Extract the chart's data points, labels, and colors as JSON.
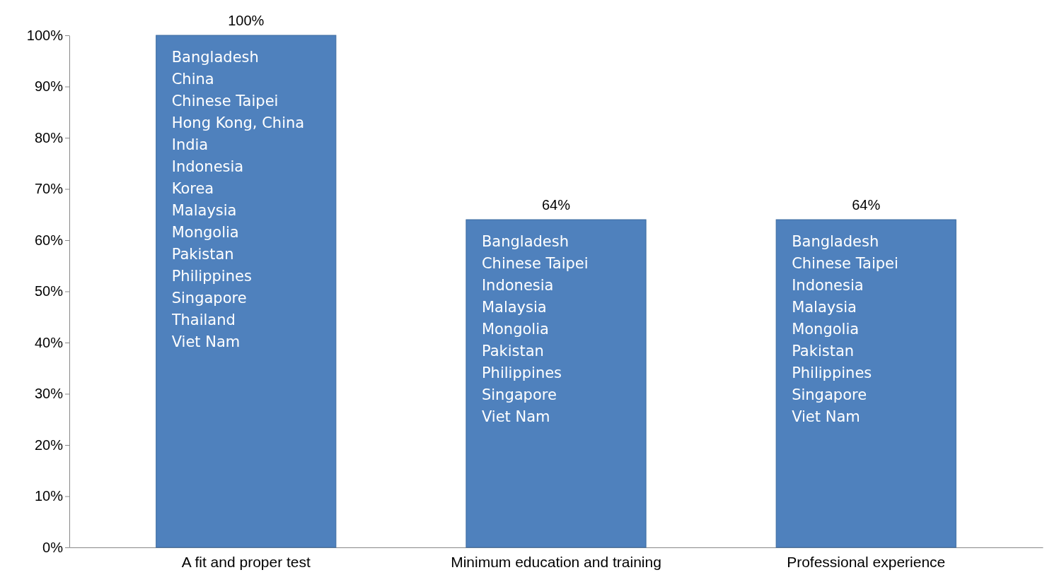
{
  "chart_data": {
    "type": "bar",
    "categories": [
      "A fit and proper test",
      "Minimum education and training",
      "Professional experience"
    ],
    "values": [
      100,
      64,
      64
    ],
    "value_labels": [
      "100%",
      "64%",
      "64%"
    ],
    "color": "#4f81bd",
    "ylim": [
      0,
      100
    ],
    "yticks": [
      {
        "value": 0,
        "label": "0%"
      },
      {
        "value": 10,
        "label": "10%"
      },
      {
        "value": 20,
        "label": "20%"
      },
      {
        "value": 30,
        "label": "30%"
      },
      {
        "value": 40,
        "label": "40%"
      },
      {
        "value": 50,
        "label": "50%"
      },
      {
        "value": 60,
        "label": "60%"
      },
      {
        "value": 70,
        "label": "70%"
      },
      {
        "value": 80,
        "label": "80%"
      },
      {
        "value": 90,
        "label": "90%"
      },
      {
        "value": 100,
        "label": "100%"
      }
    ],
    "grid": false,
    "annotations": [
      "Bangladesh\nChina\nChinese Taipei\nHong Kong, China\nIndia\nIndonesia\nKorea\nMalaysia\nMongolia\nPakistan\nPhilippines\nSingapore\nThailand\nViet Nam",
      "Bangladesh\nChinese Taipei\nIndonesia\nMalaysia\nMongolia\nPakistan\nPhilippines\nSingapore\nViet Nam",
      "Bangladesh\nChinese Taipei\nIndonesia\nMalaysia\nMongolia\nPakistan\nPhilippines\nSingapore\nViet Nam"
    ]
  }
}
